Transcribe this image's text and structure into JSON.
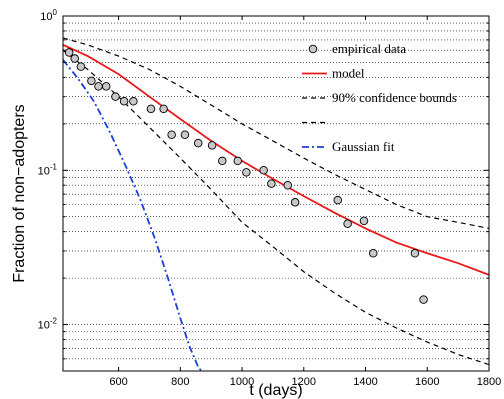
{
  "chart_data": {
    "type": "line",
    "xlabel": "t (days)",
    "ylabel": "Fraction of non−adopters",
    "xlim": [
      420,
      1800
    ],
    "ylim": [
      0.005,
      1
    ],
    "y_scale": "log",
    "grid": "y-minor-dotted",
    "legend_placement": "top-right",
    "x_ticks": [
      {
        "value": 600,
        "label": "600"
      },
      {
        "value": 800,
        "label": "800"
      },
      {
        "value": 1000,
        "label": "1000"
      },
      {
        "value": 1200,
        "label": "1200"
      },
      {
        "value": 1400,
        "label": "1400"
      },
      {
        "value": 1600,
        "label": "1600"
      },
      {
        "value": 1800,
        "label": "1800"
      }
    ],
    "y_ticks": [
      {
        "value": 1,
        "base": "10",
        "exp": "0"
      },
      {
        "value": 0.1,
        "base": "10",
        "exp": "-1"
      },
      {
        "value": 0.01,
        "base": "10",
        "exp": "-2"
      }
    ],
    "series": [
      {
        "name": "empirical data",
        "kind": "scatter",
        "color": "#c8c8c8",
        "x": [
          440,
          458,
          478,
          512,
          535,
          560,
          590,
          618,
          648,
          705,
          746,
          772,
          815,
          858,
          903,
          936,
          986,
          1014,
          1070,
          1095,
          1148,
          1172,
          1310,
          1342,
          1395,
          1425,
          1560,
          1588
        ],
        "y": [
          0.58,
          0.53,
          0.47,
          0.38,
          0.35,
          0.35,
          0.3,
          0.28,
          0.28,
          0.25,
          0.25,
          0.17,
          0.17,
          0.15,
          0.145,
          0.115,
          0.115,
          0.097,
          0.1,
          0.082,
          0.08,
          0.062,
          0.064,
          0.045,
          0.047,
          0.029,
          0.029,
          0.0145
        ]
      },
      {
        "name": "model",
        "kind": "line",
        "color": "#e8191b",
        "x": [
          420,
          500,
          600,
          700,
          800,
          900,
          1000,
          1100,
          1200,
          1300,
          1400,
          1500,
          1600,
          1700,
          1800
        ],
        "y": [
          0.65,
          0.55,
          0.42,
          0.3,
          0.215,
          0.155,
          0.115,
          0.088,
          0.068,
          0.053,
          0.042,
          0.034,
          0.029,
          0.025,
          0.021
        ]
      },
      {
        "name": "90% confidence bounds",
        "kind": "line",
        "dash": "dashed",
        "color": "#000000",
        "x": [
          420,
          500,
          600,
          700,
          800,
          900,
          1000,
          1100,
          1200,
          1300,
          1400,
          1500,
          1600,
          1700,
          1800
        ],
        "y": [
          0.72,
          0.65,
          0.55,
          0.45,
          0.35,
          0.265,
          0.2,
          0.155,
          0.12,
          0.094,
          0.075,
          0.06,
          0.05,
          0.046,
          0.042
        ]
      },
      {
        "name": "",
        "kind": "line",
        "dash": "dashed",
        "color": "#000000",
        "x": [
          420,
          500,
          600,
          700,
          800,
          900,
          1000,
          1100,
          1200,
          1300,
          1400,
          1500,
          1600,
          1700,
          1800
        ],
        "y": [
          0.6,
          0.45,
          0.3,
          0.19,
          0.12,
          0.075,
          0.046,
          0.032,
          0.022,
          0.016,
          0.012,
          0.0095,
          0.0077,
          0.0064,
          0.0055
        ]
      },
      {
        "name": "Gaussian fit",
        "kind": "line",
        "dash": "dashdot",
        "color": "#1a3fd8",
        "x": [
          420,
          470,
          520,
          570,
          620,
          670,
          720,
          760,
          800,
          830,
          860,
          872
        ],
        "y": [
          0.52,
          0.39,
          0.28,
          0.18,
          0.11,
          0.065,
          0.035,
          0.02,
          0.011,
          0.0072,
          0.0052,
          0.005
        ]
      }
    ]
  }
}
